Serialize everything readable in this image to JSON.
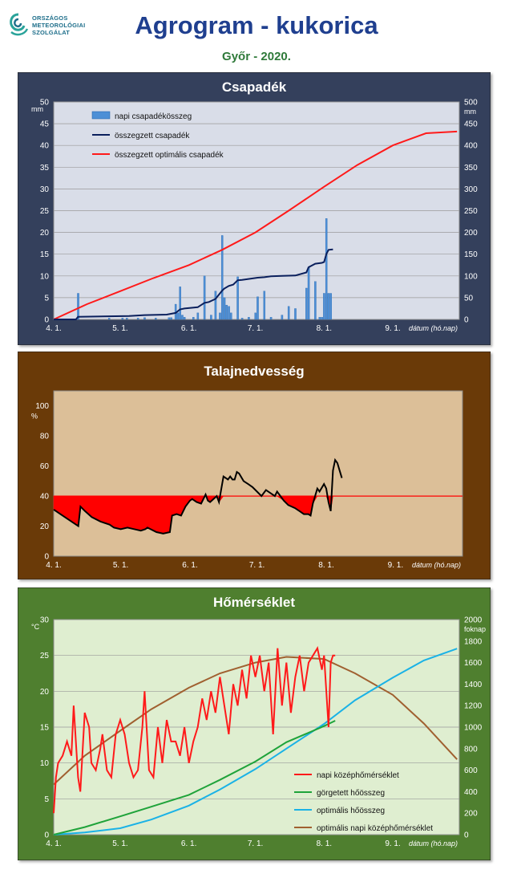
{
  "header": {
    "logo_lines": [
      "ORSZÁGOS",
      "METEOROLÓGIAI",
      "SZOLGÁLAT"
    ],
    "title": "Agrogram - kukorica",
    "subtitle": "Győr - 2020."
  },
  "colors": {
    "precip_panel": "#34405c",
    "precip_plot": "#d9dde8",
    "soil_panel": "#6a3a08",
    "soil_plot": "#dcbf98",
    "temp_panel": "#4f7f2f",
    "temp_plot": "#dfeed0"
  },
  "chart_data": [
    {
      "type": "bar",
      "title": "Csapadék",
      "ylabel": "mm",
      "y2label": "mm",
      "xlabel": "dátum (hó.nap)",
      "x_ticks": [
        "4. 1.",
        "5. 1.",
        "6. 1.",
        "7. 1.",
        "8. 1.",
        "9. 1."
      ],
      "ylim": [
        0,
        50
      ],
      "y_ticks": [
        0,
        5,
        10,
        15,
        20,
        25,
        30,
        35,
        40,
        45,
        50
      ],
      "y2lim": [
        0,
        500
      ],
      "y2_ticks": [
        0,
        50,
        100,
        150,
        200,
        250,
        300,
        350,
        400,
        450,
        500
      ],
      "grid": true,
      "legend_position": "top-left",
      "series": [
        {
          "name": "napi csapadékösszeg",
          "kind": "bar",
          "axis": "left",
          "color": "#4d8fd6",
          "x": [
            "04-12",
            "04-26",
            "05-02",
            "05-04",
            "05-09",
            "05-12",
            "05-17",
            "05-23",
            "05-24",
            "05-26",
            "05-27",
            "05-28",
            "05-29",
            "05-30",
            "06-03",
            "06-05",
            "06-08",
            "06-11",
            "06-13",
            "06-15",
            "06-16",
            "06-17",
            "06-18",
            "06-19",
            "06-20",
            "06-23",
            "06-25",
            "06-28",
            "07-01",
            "07-02",
            "07-05",
            "07-08",
            "07-13",
            "07-16",
            "07-19",
            "07-24",
            "07-25",
            "07-28",
            "07-30",
            "07-31",
            "08-01",
            "08-02",
            "08-03",
            "08-04"
          ],
          "values": [
            6.0,
            0.3,
            0.3,
            0.3,
            0.3,
            0.4,
            0.3,
            0.4,
            0.4,
            3.5,
            1.5,
            7.5,
            1.0,
            0.5,
            0.5,
            1.5,
            10.0,
            1.0,
            6.5,
            1.5,
            19.3,
            5.0,
            3.3,
            3.0,
            1.5,
            9.8,
            0.3,
            0.5,
            1.5,
            5.2,
            6.5,
            0.5,
            1.0,
            3.0,
            2.5,
            7.2,
            12.0,
            8.7,
            0.5,
            0.5,
            6.0,
            23.2,
            6.0,
            6.0
          ]
        },
        {
          "name": "összegzett csapadék",
          "kind": "line",
          "axis": "right",
          "color": "#0a1f5c",
          "x": [
            "04-01",
            "04-11",
            "04-12",
            "05-05",
            "05-12",
            "05-22",
            "05-26",
            "05-28",
            "05-30",
            "06-05",
            "06-08",
            "06-10",
            "06-13",
            "06-16",
            "06-17",
            "06-19",
            "06-21",
            "06-23",
            "06-25",
            "07-02",
            "07-05",
            "07-08",
            "07-13",
            "07-19",
            "07-24",
            "07-25",
            "07-28",
            "07-31",
            "08-01",
            "08-02",
            "08-03",
            "08-05"
          ],
          "values": [
            0,
            0,
            6,
            8,
            10,
            11,
            15,
            23,
            25,
            28,
            38,
            40,
            47,
            66,
            71,
            77,
            80,
            90,
            91,
            96,
            97,
            99,
            100,
            101,
            108,
            120,
            128,
            130,
            132,
            150,
            160,
            161
          ]
        },
        {
          "name": "összegzett optimális csapadék",
          "kind": "line",
          "axis": "right",
          "color": "#ff1a1a",
          "x": [
            "04-01",
            "04-16",
            "05-01",
            "05-16",
            "06-01",
            "06-16",
            "07-01",
            "07-16",
            "08-01",
            "08-16",
            "09-01",
            "09-16",
            "09-30"
          ],
          "values": [
            0,
            35,
            65,
            95,
            125,
            160,
            200,
            250,
            305,
            355,
            400,
            428,
            432
          ]
        }
      ]
    },
    {
      "type": "line",
      "title": "Talajnedvesség",
      "ylabel": "%",
      "xlabel": "dátum (hó.nap)",
      "x_ticks": [
        "4. 1.",
        "5. 1.",
        "6. 1.",
        "7. 1.",
        "8. 1.",
        "9. 1."
      ],
      "ylim": [
        0,
        110
      ],
      "y_ticks": [
        0,
        20,
        40,
        60,
        80,
        100
      ],
      "threshold": 40,
      "series": [
        {
          "name": "talajnedvesség",
          "color": "#000000",
          "x": [
            "04-01",
            "04-05",
            "04-10",
            "04-12",
            "04-13",
            "04-15",
            "04-18",
            "04-22",
            "04-26",
            "04-28",
            "05-01",
            "05-04",
            "05-07",
            "05-10",
            "05-12",
            "05-13",
            "05-17",
            "05-20",
            "05-23",
            "05-24",
            "05-26",
            "05-28",
            "05-30",
            "06-01",
            "06-02",
            "06-04",
            "06-06",
            "06-08",
            "06-09",
            "06-10",
            "06-13",
            "06-14",
            "06-16",
            "06-18",
            "06-19",
            "06-20",
            "06-21",
            "06-22",
            "06-23",
            "06-25",
            "06-27",
            "06-29",
            "07-01",
            "07-03",
            "07-05",
            "07-07",
            "07-09",
            "07-10",
            "07-13",
            "07-15",
            "07-18",
            "07-20",
            "07-22",
            "07-24",
            "07-25",
            "07-26",
            "07-28",
            "07-29",
            "07-31",
            "08-01",
            "08-02",
            "08-03",
            "08-04",
            "08-05",
            "08-06",
            "08-07",
            "08-08"
          ],
          "values": [
            31,
            27,
            22,
            20,
            33,
            30,
            26,
            23,
            21,
            19,
            18,
            19,
            18,
            17,
            18,
            19,
            16,
            15,
            16,
            27,
            28,
            27,
            33,
            37,
            38,
            36,
            35,
            41,
            37,
            36,
            40,
            36,
            53,
            51,
            53,
            51,
            51,
            56,
            55,
            50,
            48,
            46,
            43,
            40,
            44,
            42,
            40,
            43,
            37,
            34,
            32,
            30,
            28,
            28,
            27,
            35,
            45,
            43,
            48,
            45,
            36,
            30,
            57,
            64,
            62,
            57,
            52
          ]
        }
      ]
    },
    {
      "type": "line",
      "title": "Hőmérséklet",
      "ylabel": "°C",
      "y2label": "foknap",
      "xlabel": "dátum (hó.nap)",
      "x_ticks": [
        "4. 1.",
        "5. 1.",
        "6. 1.",
        "7. 1.",
        "8. 1.",
        "9. 1."
      ],
      "ylim": [
        0,
        30
      ],
      "y_ticks": [
        0,
        5,
        10,
        15,
        20,
        25,
        30
      ],
      "y2lim": [
        0,
        2000
      ],
      "y2_ticks": [
        0,
        200,
        400,
        600,
        800,
        1000,
        1200,
        1400,
        1600,
        1800,
        2000
      ],
      "grid": true,
      "legend_position": "bottom-right",
      "series": [
        {
          "name": "napi középhőmérséklet",
          "axis": "left",
          "color": "#ff1a1a",
          "x": [
            "04-01",
            "04-02",
            "04-03",
            "04-05",
            "04-07",
            "04-09",
            "04-10",
            "04-12",
            "04-13",
            "04-15",
            "04-17",
            "04-18",
            "04-20",
            "04-22",
            "04-23",
            "04-25",
            "04-27",
            "04-29",
            "05-01",
            "05-03",
            "05-05",
            "05-07",
            "05-09",
            "05-11",
            "05-12",
            "05-14",
            "05-16",
            "05-18",
            "05-20",
            "05-22",
            "05-24",
            "05-26",
            "05-28",
            "05-30",
            "06-01",
            "06-03",
            "06-05",
            "06-07",
            "06-09",
            "06-11",
            "06-13",
            "06-15",
            "06-17",
            "06-19",
            "06-21",
            "06-23",
            "06-25",
            "06-27",
            "06-29",
            "07-01",
            "07-03",
            "07-05",
            "07-07",
            "07-09",
            "07-11",
            "07-13",
            "07-15",
            "07-17",
            "07-19",
            "07-21",
            "07-23",
            "07-25",
            "07-27",
            "07-29",
            "07-31",
            "08-01",
            "08-02",
            "08-03",
            "08-04",
            "08-05",
            "08-06"
          ],
          "values": [
            3,
            8,
            10,
            11,
            13,
            11,
            18,
            8,
            6,
            17,
            15,
            10,
            9,
            12,
            14,
            9,
            8,
            14,
            16,
            14,
            10,
            8,
            9,
            15,
            20,
            9,
            8,
            15,
            10,
            16,
            13,
            13,
            11,
            15,
            10,
            13,
            15,
            19,
            16,
            20,
            17,
            22,
            18,
            14,
            21,
            18,
            23,
            19,
            25,
            22,
            25,
            20,
            24,
            14,
            26,
            18,
            24,
            17,
            22,
            25,
            20,
            24,
            25,
            26,
            23,
            25,
            20,
            15,
            24,
            25,
            25
          ]
        },
        {
          "name": "görgetett hőösszeg",
          "axis": "right",
          "color": "#1fa33a",
          "x": [
            "04-01",
            "04-15",
            "05-01",
            "05-15",
            "06-01",
            "06-15",
            "07-01",
            "07-15",
            "08-01",
            "08-06"
          ],
          "values": [
            0,
            70,
            170,
            260,
            370,
            510,
            680,
            860,
            1010,
            1060
          ]
        },
        {
          "name": "optimális hőösszeg",
          "axis": "right",
          "color": "#1ab2e6",
          "x": [
            "04-01",
            "04-15",
            "05-01",
            "05-15",
            "06-01",
            "06-15",
            "07-01",
            "07-15",
            "08-01",
            "08-15",
            "09-01",
            "09-15",
            "09-30"
          ],
          "values": [
            0,
            20,
            60,
            140,
            270,
            420,
            610,
            800,
            1030,
            1250,
            1460,
            1620,
            1730
          ]
        },
        {
          "name": "optimális napi középhőmérséklet",
          "axis": "left",
          "color": "#a06030",
          "x": [
            "04-01",
            "04-15",
            "05-01",
            "05-15",
            "06-01",
            "06-15",
            "07-01",
            "07-15",
            "08-01",
            "08-15",
            "09-01",
            "09-15",
            "09-30"
          ],
          "values": [
            7,
            11,
            14.5,
            17.5,
            20.5,
            22.5,
            24,
            24.8,
            24.5,
            22.5,
            19.5,
            15.5,
            10.5
          ]
        }
      ]
    }
  ]
}
